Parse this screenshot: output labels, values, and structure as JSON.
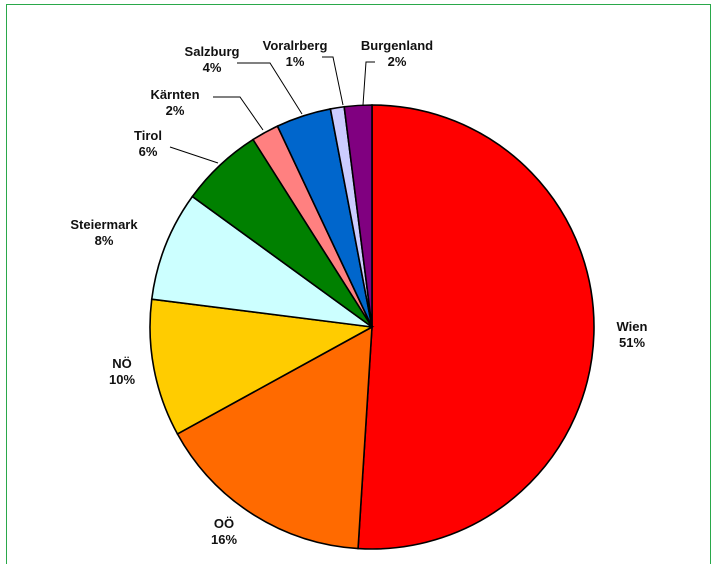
{
  "chart_data": {
    "type": "pie",
    "title": "",
    "slices": [
      {
        "name": "Wien",
        "value": 51,
        "label": "51%",
        "color": "#ff0000"
      },
      {
        "name": "OÖ",
        "value": 16,
        "label": "16%",
        "color": "#ff6a00"
      },
      {
        "name": "NÖ",
        "value": 10,
        "label": "10%",
        "color": "#ffcc00"
      },
      {
        "name": "Steiermark",
        "value": 8,
        "label": "8%",
        "color": "#ccffff"
      },
      {
        "name": "Tirol",
        "value": 6,
        "label": "6%",
        "color": "#008000"
      },
      {
        "name": "Kärnten",
        "value": 2,
        "label": "2%",
        "color": "#ff8080"
      },
      {
        "name": "Salzburg",
        "value": 4,
        "label": "4%",
        "color": "#0066cc"
      },
      {
        "name": "Voralrberg",
        "value": 1,
        "label": "1%",
        "color": "#ccccff"
      },
      {
        "name": "Burgenland",
        "value": 2,
        "label": "2%",
        "color": "#800080"
      }
    ],
    "start_angle": "12 o'clock",
    "direction": "clockwise",
    "legend": "none (labels beside slices)"
  }
}
